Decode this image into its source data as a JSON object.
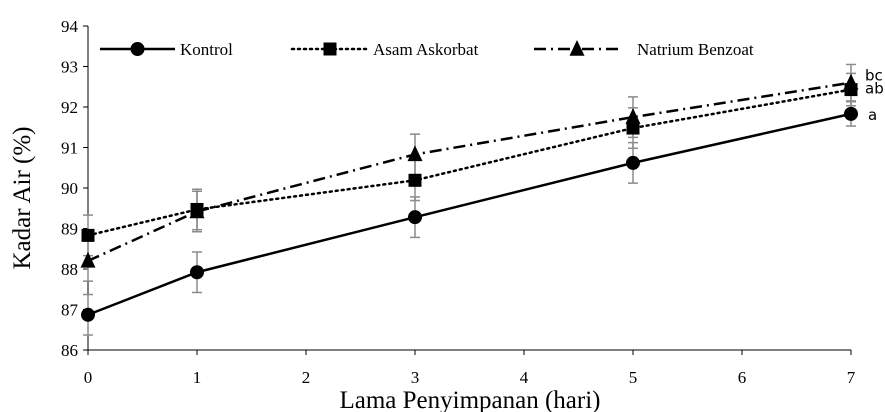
{
  "chart_data": {
    "type": "line",
    "xlabel": "Lama Penyimpanan (hari)",
    "ylabel": "Kadar Air (%)",
    "xlim": [
      0,
      7
    ],
    "ylim": [
      86,
      94
    ],
    "xticks": [
      "0",
      "1",
      "2",
      "3",
      "4",
      "5",
      "6",
      "7"
    ],
    "yticks": [
      "86",
      "87",
      "88",
      "89",
      "90",
      "91",
      "92",
      "93",
      "94"
    ],
    "grid": false,
    "legend_position": "top",
    "x": [
      0,
      1,
      3,
      5,
      7
    ],
    "series": [
      {
        "name": "Kontrol",
        "values": [
          86.87,
          87.92,
          89.28,
          90.62,
          91.83
        ],
        "errors": [
          0.5,
          0.5,
          0.5,
          0.5,
          0.3
        ],
        "marker": "circle",
        "line_style": "solid",
        "end_label": "a"
      },
      {
        "name": "Asam Askorbat",
        "values": [
          88.83,
          89.47,
          90.19,
          91.48,
          92.43
        ],
        "errors": [
          0.5,
          0.5,
          0.5,
          0.5,
          0.4
        ],
        "marker": "square",
        "line_style": "dotted",
        "end_label": "ab"
      },
      {
        "name": "Natrium Benzoat",
        "values": [
          88.2,
          89.42,
          90.83,
          91.75,
          92.6
        ],
        "errors": [
          0.5,
          0.5,
          0.5,
          0.5,
          0.45
        ],
        "marker": "triangle",
        "line_style": "dash-dot",
        "end_label": "bc"
      }
    ]
  }
}
